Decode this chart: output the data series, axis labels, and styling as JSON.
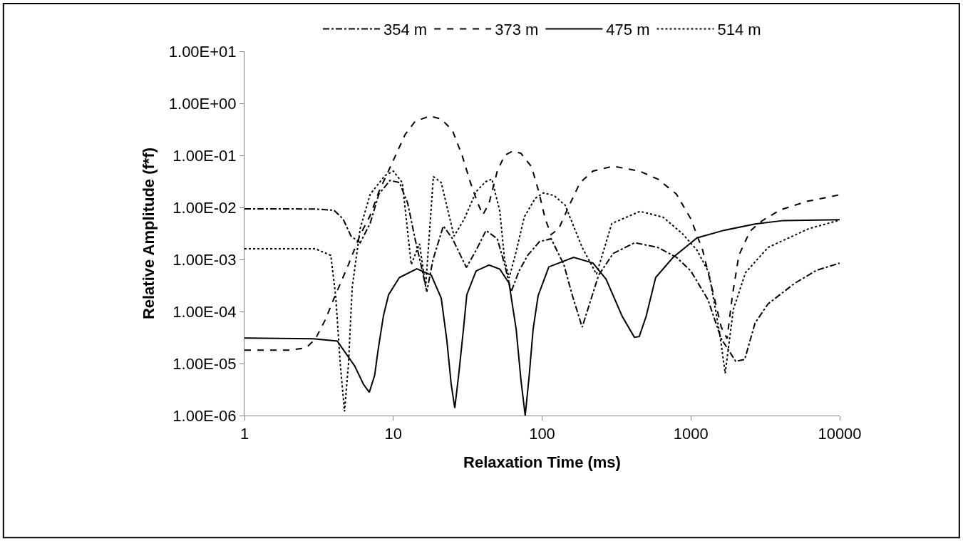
{
  "chart_data": {
    "type": "line",
    "xlabel": "Relaxation Time (ms)",
    "ylabel": "Relative Amplitude (f*f)",
    "log": "xy",
    "legend": "top",
    "marker": "none",
    "xlim": [
      1,
      10000
    ],
    "xticks": [
      1,
      10,
      100,
      1000,
      10000
    ],
    "ylim": [
      1e-06,
      10
    ],
    "yticks": [
      {
        "value": 10,
        "label": "1.00E+01"
      },
      {
        "value": 1,
        "label": "1.00E+00"
      },
      {
        "value": 0.1,
        "label": "1.00E-01"
      },
      {
        "value": 0.01,
        "label": "1.00E-02"
      },
      {
        "value": 0.001,
        "label": "1.00E-03"
      },
      {
        "value": 0.0001,
        "label": "1.00E-04"
      },
      {
        "value": 1e-05,
        "label": "1.00E-05"
      },
      {
        "value": 1e-06,
        "label": "1.00E-06"
      }
    ],
    "series": [
      {
        "name": "354 m",
        "color": "#000000",
        "line_style": "dashdot",
        "x": [
          1,
          2,
          3,
          4,
          4.6,
          5.2,
          6.0,
          7,
          8,
          9.5,
          11,
          12.5,
          14,
          15.5,
          16.8,
          18.5,
          21.7,
          25,
          31,
          36,
          42,
          50,
          56,
          62,
          70,
          80,
          96,
          115,
          140,
          160,
          186,
          210,
          240,
          300,
          420,
          600,
          800,
          1000,
          1300,
          1600,
          2000,
          2300,
          2700,
          3300,
          5000,
          7000,
          10000
        ],
        "values": [
          0.0094,
          0.0094,
          0.0093,
          0.0088,
          0.006,
          0.0028,
          0.0021,
          0.005,
          0.018,
          0.033,
          0.03,
          0.012,
          0.0025,
          0.0007,
          0.00024,
          0.001,
          0.0044,
          0.0025,
          0.0007,
          0.0015,
          0.0036,
          0.0025,
          0.0008,
          0.00024,
          0.0006,
          0.0012,
          0.0022,
          0.0025,
          0.0008,
          0.0002,
          5e-05,
          0.00015,
          0.0005,
          0.0013,
          0.0021,
          0.0017,
          0.0011,
          0.0006,
          0.00017,
          3e-05,
          1.1e-05,
          1.2e-05,
          6e-05,
          0.00014,
          0.00035,
          0.00062,
          0.00085
        ]
      },
      {
        "name": "373 m",
        "color": "#000000",
        "line_style": "dashed",
        "x": [
          1,
          2,
          2.6,
          3,
          3.5,
          4,
          5,
          6,
          7,
          8,
          10,
          12,
          14,
          17.6,
          21,
          25,
          29,
          33,
          37,
          40,
          44,
          50,
          56,
          63,
          72,
          85,
          95,
          105,
          115,
          130,
          150,
          180,
          220,
          300,
          450,
          600,
          800,
          1000,
          1200,
          1400,
          1600,
          1750,
          1900,
          2100,
          2500,
          3000,
          4000,
          6000,
          10000
        ],
        "values": [
          1.8e-05,
          1.8e-05,
          2e-05,
          3e-05,
          7e-05,
          0.00018,
          0.0008,
          0.003,
          0.007,
          0.02,
          0.08,
          0.25,
          0.45,
          0.57,
          0.5,
          0.3,
          0.1,
          0.03,
          0.012,
          0.0072,
          0.012,
          0.05,
          0.1,
          0.12,
          0.11,
          0.06,
          0.02,
          0.006,
          0.003,
          0.004,
          0.01,
          0.03,
          0.05,
          0.062,
          0.05,
          0.035,
          0.018,
          0.006,
          0.0015,
          0.00025,
          5e-05,
          3e-05,
          0.0002,
          0.0012,
          0.0035,
          0.0055,
          0.009,
          0.013,
          0.0175
        ]
      },
      {
        "name": "475 m",
        "color": "#000000",
        "line_style": "solid",
        "x": [
          1,
          2.9,
          4.2,
          5.5,
          6.3,
          6.9,
          7.5,
          7.9,
          8.6,
          9.3,
          11,
          14.4,
          18,
          21,
          22.9,
          24.5,
          25.9,
          27.5,
          29.6,
          31.2,
          36,
          44,
          52,
          60,
          67,
          72,
          77,
          82,
          87,
          94,
          111,
          163,
          220,
          269,
          346,
          417,
          450,
          500,
          580,
          760,
          1100,
          1650,
          2700,
          4200,
          10000
        ],
        "values": [
          3.1e-05,
          3e-05,
          2.7e-05,
          9e-06,
          4e-06,
          2.8e-06,
          6e-06,
          1.8e-05,
          8.5e-05,
          0.00021,
          0.00045,
          0.00066,
          0.0005,
          0.00018,
          2.8e-05,
          4e-06,
          1.4e-06,
          6e-06,
          4.5e-05,
          0.00021,
          0.0006,
          0.00078,
          0.00065,
          0.00035,
          4.5e-05,
          5e-06,
          1e-06,
          6e-06,
          4.5e-05,
          0.0002,
          0.00072,
          0.0011,
          0.00085,
          0.00042,
          8e-05,
          3.2e-05,
          3.3e-05,
          8e-05,
          0.00045,
          0.0011,
          0.0026,
          0.0036,
          0.0048,
          0.0056,
          0.0058
        ]
      },
      {
        "name": "514 m",
        "color": "#000000",
        "line_style": "dotted",
        "x": [
          1,
          3,
          3.8,
          4.1,
          4.4,
          4.7,
          5.0,
          5.3,
          6,
          7,
          8.8,
          10,
          11.5,
          13.2,
          15,
          16.5,
          18.6,
          21,
          25.6,
          30,
          36,
          41.6,
          46,
          52,
          56,
          60,
          66,
          76,
          90,
          102,
          120,
          143,
          186,
          232,
          294,
          455,
          650,
          880,
          1100,
          1320,
          1560,
          1700,
          1930,
          2330,
          3300,
          6200,
          10000
        ],
        "values": [
          0.0016,
          0.0016,
          0.0012,
          0.0002,
          1e-05,
          1.2e-06,
          1e-05,
          0.0003,
          0.004,
          0.018,
          0.041,
          0.05,
          0.03,
          0.0008,
          0.002,
          0.0003,
          0.039,
          0.03,
          0.0028,
          0.006,
          0.02,
          0.031,
          0.035,
          0.0084,
          0.00097,
          0.00044,
          0.0012,
          0.0066,
          0.015,
          0.019,
          0.017,
          0.011,
          0.0017,
          0.00052,
          0.0049,
          0.0084,
          0.0065,
          0.0031,
          0.0015,
          0.00056,
          3.9e-05,
          6.5e-06,
          0.00011,
          0.00056,
          0.0017,
          0.0039,
          0.0057
        ]
      }
    ]
  }
}
